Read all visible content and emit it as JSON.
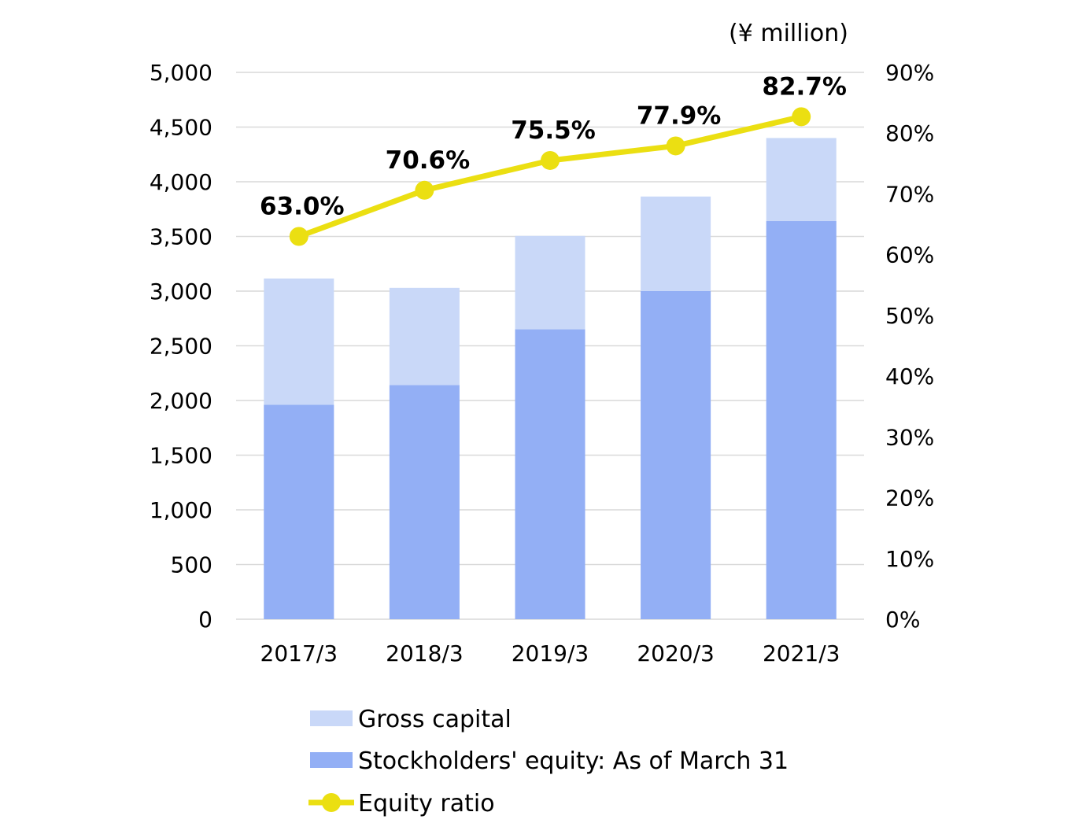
{
  "chart_data": {
    "type": "bar",
    "unit_label": "(¥ million)",
    "categories": [
      "2017/3",
      "2018/3",
      "2019/3",
      "2020/3",
      "2021/3"
    ],
    "series": [
      {
        "name": "Gross capital",
        "kind": "bar",
        "axis": "left",
        "color": "#c9d8f8",
        "values": [
          3115,
          3030,
          3505,
          3865,
          4400
        ]
      },
      {
        "name": "Stockholders' equity: As of March 31",
        "kind": "bar",
        "axis": "left",
        "color": "#93aff5",
        "values": [
          1960,
          2140,
          2650,
          3000,
          3640
        ]
      },
      {
        "name": "Equity ratio",
        "kind": "line",
        "axis": "right",
        "color": "#ebdf12",
        "values": [
          63.0,
          70.6,
          75.5,
          77.9,
          82.7
        ],
        "labels": [
          "63.0%",
          "70.6%",
          "75.5%",
          "77.9%",
          "82.7%"
        ]
      }
    ],
    "y_left": {
      "ylim": [
        0,
        5000
      ],
      "ticks": [
        0,
        500,
        1000,
        1500,
        2000,
        2500,
        3000,
        3500,
        4000,
        4500,
        5000
      ],
      "tick_labels": [
        "0",
        "500",
        "1,000",
        "1,500",
        "2,000",
        "2,500",
        "3,000",
        "3,500",
        "4,000",
        "4,500",
        "5,000"
      ]
    },
    "y_right": {
      "ylim": [
        0,
        90
      ],
      "ticks": [
        0,
        10,
        20,
        30,
        40,
        50,
        60,
        70,
        80,
        90
      ],
      "tick_labels": [
        "0%",
        "10%",
        "20%",
        "30%",
        "40%",
        "50%",
        "60%",
        "70%",
        "80%",
        "90%"
      ]
    },
    "grid": true,
    "legend_position": "bottom"
  }
}
